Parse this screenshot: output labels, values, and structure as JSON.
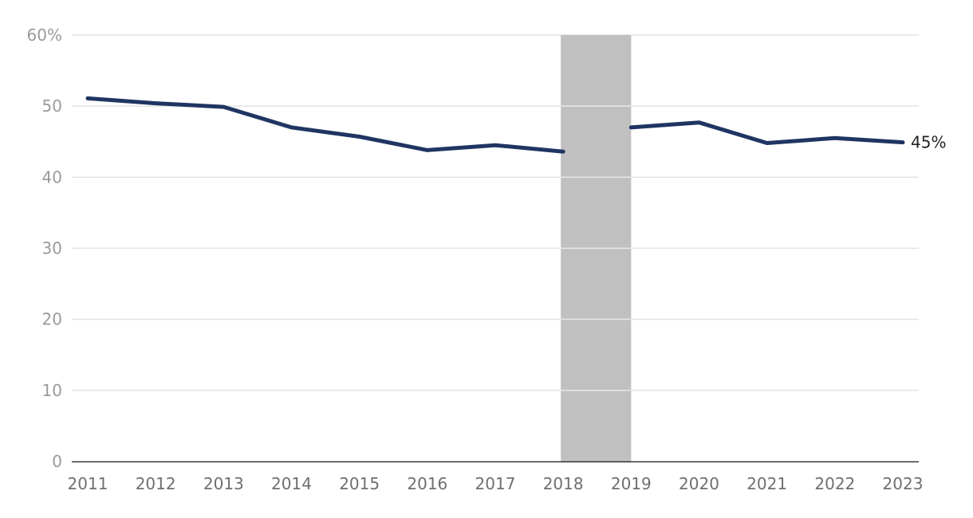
{
  "chart_data": {
    "type": "line",
    "x": [
      "2011",
      "2012",
      "2013",
      "2014",
      "2015",
      "2016",
      "2017",
      "2018",
      "2019",
      "2020",
      "2021",
      "2022",
      "2023"
    ],
    "series": [
      {
        "values": [
          51.1,
          50.4,
          49.9,
          47.0,
          45.7,
          43.8,
          44.5,
          43.6,
          47.0,
          47.7,
          44.8,
          45.5,
          44.9
        ]
      }
    ],
    "break_between": [
      "2018",
      "2019"
    ],
    "shaded_region": {
      "from": "2018",
      "to": "2019"
    },
    "ylim": [
      0,
      60
    ],
    "yticks": [
      0,
      10,
      20,
      30,
      40,
      50,
      60
    ],
    "ytick_labels": [
      "0",
      "10",
      "20",
      "30",
      "40",
      "50",
      "60%"
    ],
    "end_label": "45%",
    "grid": true,
    "colors": {
      "line": "#1f3563",
      "shade": "#c0c0c0",
      "grid": "#e3e3e3",
      "axis": "#333333"
    }
  }
}
